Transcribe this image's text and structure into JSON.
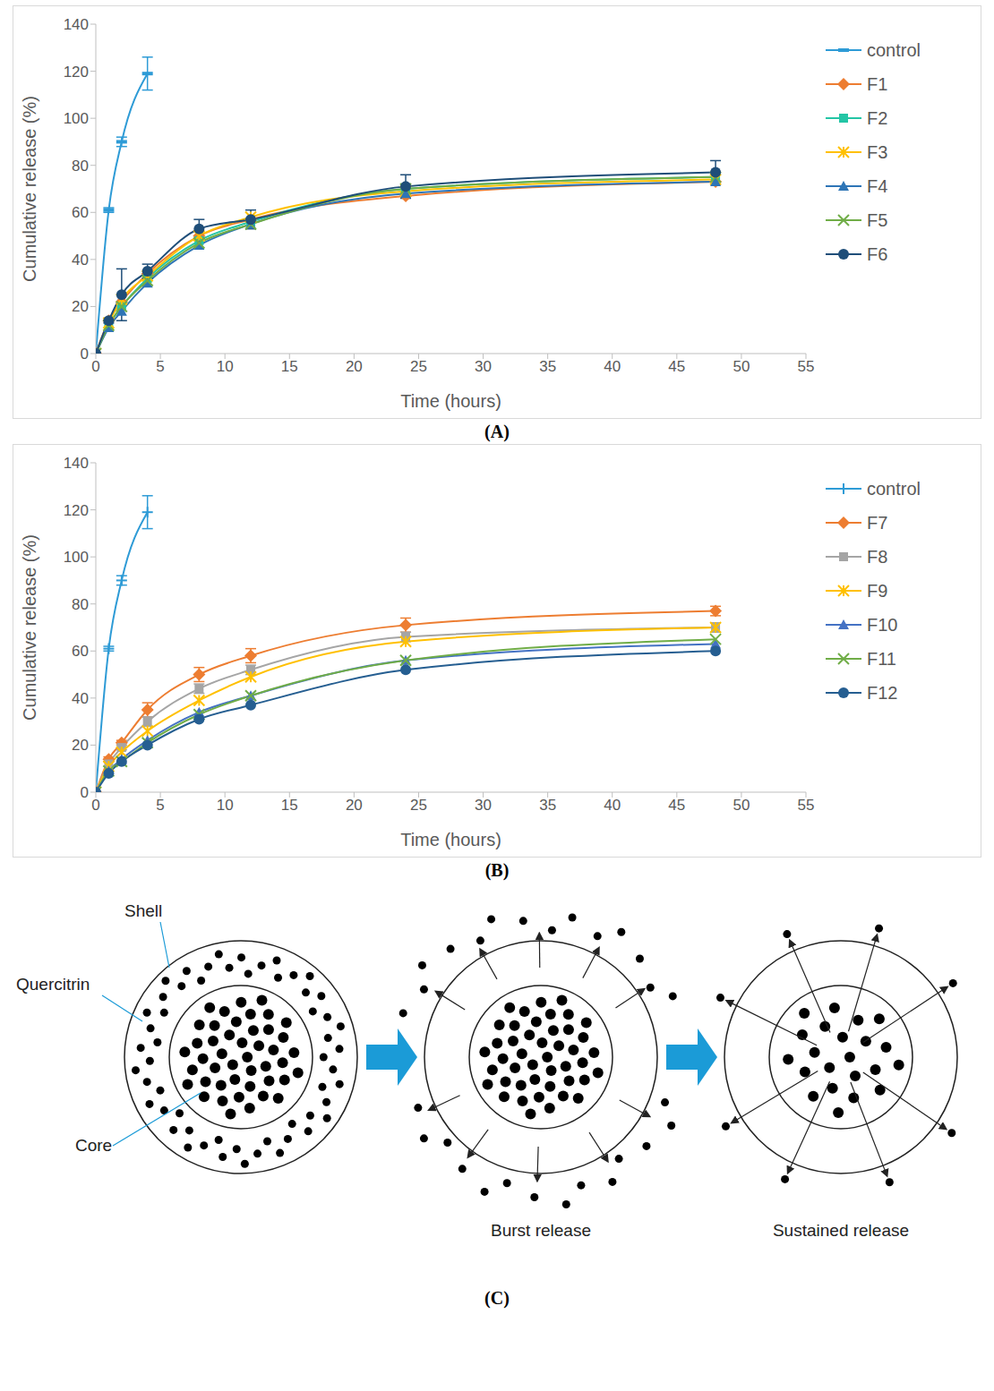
{
  "panels": [
    "(A)",
    "(B)",
    "(C)"
  ],
  "chart_data": [
    {
      "type": "line",
      "x_label": "Time (hours)",
      "y_label": "Cumulative release (%)",
      "x": [
        0,
        1,
        2,
        4,
        8,
        12,
        24,
        48
      ],
      "xlim": [
        0,
        55
      ],
      "xticks": [
        0,
        5,
        10,
        15,
        20,
        25,
        30,
        35,
        40,
        45,
        50,
        55
      ],
      "ylim": [
        0,
        140
      ],
      "yticks": [
        0,
        20,
        40,
        60,
        80,
        100,
        120,
        140
      ],
      "grid": false,
      "legend": "right",
      "series": [
        {
          "name": "control",
          "color": "#2e9bd6",
          "marker": "dash",
          "values": [
            0,
            61,
            90,
            119,
            null,
            null,
            null,
            null
          ],
          "errors": [
            0,
            1,
            2,
            7,
            null,
            null,
            null,
            null
          ]
        },
        {
          "name": "F1",
          "color": "#ed7d31",
          "marker": "diamond",
          "values": [
            0,
            14,
            22,
            34,
            50,
            57,
            67,
            73
          ]
        },
        {
          "name": "F2",
          "color": "#23c5a5",
          "marker": "square",
          "values": [
            0,
            12,
            20,
            32,
            48,
            56,
            70,
            75
          ]
        },
        {
          "name": "F3",
          "color": "#ffc000",
          "marker": "star",
          "values": [
            0,
            13,
            23,
            33,
            50,
            58,
            69,
            74
          ]
        },
        {
          "name": "F4",
          "color": "#2e75b6",
          "marker": "triangle",
          "values": [
            0,
            11,
            18,
            30,
            46,
            55,
            68,
            73
          ]
        },
        {
          "name": "F5",
          "color": "#70ad47",
          "marker": "cross",
          "values": [
            0,
            12,
            20,
            31,
            47,
            55,
            70,
            75
          ]
        },
        {
          "name": "F6",
          "color": "#1f4e79",
          "marker": "circle",
          "values": [
            0,
            14,
            25,
            35,
            53,
            57,
            71,
            77
          ],
          "errors": [
            0,
            1,
            11,
            3,
            4,
            4,
            5,
            5
          ]
        }
      ]
    },
    {
      "type": "line",
      "x_label": "Time (hours)",
      "y_label": "Cumulative release (%)",
      "x": [
        0,
        1,
        2,
        4,
        8,
        12,
        24,
        48
      ],
      "xlim": [
        0,
        55
      ],
      "xticks": [
        0,
        5,
        10,
        15,
        20,
        25,
        30,
        35,
        40,
        45,
        50,
        55
      ],
      "ylim": [
        0,
        140
      ],
      "yticks": [
        0,
        20,
        40,
        60,
        80,
        100,
        120,
        140
      ],
      "grid": false,
      "legend": "right",
      "series": [
        {
          "name": "control",
          "color": "#2e9bd6",
          "marker": "plus",
          "values": [
            0,
            61,
            90,
            119,
            null,
            null,
            null,
            null
          ],
          "errors": [
            0,
            1,
            2,
            7,
            null,
            null,
            null,
            null
          ]
        },
        {
          "name": "F7",
          "color": "#ed7d31",
          "marker": "diamond",
          "values": [
            0,
            14,
            21,
            35,
            50,
            58,
            71,
            77
          ],
          "errors": [
            0,
            1,
            1,
            3,
            3,
            3,
            3,
            2
          ]
        },
        {
          "name": "F8",
          "color": "#a5a5a5",
          "marker": "square",
          "values": [
            0,
            12,
            19,
            30,
            44,
            52,
            66,
            70
          ],
          "errors": [
            0,
            1,
            1,
            2,
            2,
            2,
            2,
            2
          ]
        },
        {
          "name": "F9",
          "color": "#ffc000",
          "marker": "star",
          "values": [
            0,
            11,
            17,
            26,
            39,
            49,
            64,
            70
          ]
        },
        {
          "name": "F10",
          "color": "#4472c4",
          "marker": "triangle",
          "values": [
            0,
            9,
            14,
            22,
            34,
            41,
            56,
            63
          ]
        },
        {
          "name": "F11",
          "color": "#70ad47",
          "marker": "cross",
          "values": [
            0,
            9,
            13,
            21,
            33,
            41,
            56,
            65
          ]
        },
        {
          "name": "F12",
          "color": "#255e91",
          "marker": "circle",
          "values": [
            0,
            8,
            13,
            20,
            31,
            37,
            52,
            60
          ]
        }
      ]
    }
  ],
  "diagram": {
    "shell_label": "Shell",
    "drug_label": "Quercitrin",
    "core_label": "Core",
    "stages": [
      "Burst release",
      "Sustained release"
    ]
  }
}
